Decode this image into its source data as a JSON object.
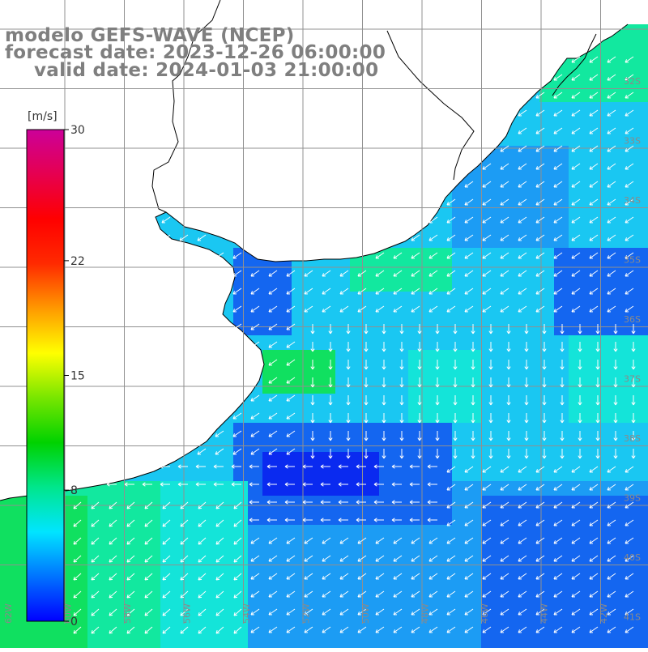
{
  "title": {
    "model": "modelo GEFS-WAVE (NCEP)",
    "forecast": "forecast date: 2023-12-26 06:00:00",
    "valid": "valid date: 2024-01-03 21:00:00"
  },
  "colorbar": {
    "unit": "[m/s]",
    "ticks": [
      {
        "value": 30,
        "label": "30"
      },
      {
        "value": 22,
        "label": "22"
      },
      {
        "value": 15,
        "label": "15"
      },
      {
        "value": 8,
        "label": "8"
      },
      {
        "value": 0,
        "label": "0"
      }
    ],
    "gradient_colors": [
      "#0000ff",
      "#0073ff",
      "#00e5ff",
      "#00e68c",
      "#00d200",
      "#78e600",
      "#ffff00",
      "#ff9900",
      "#ff2a00",
      "#ff0000",
      "#e60050",
      "#cc0099"
    ]
  },
  "map": {
    "land_color": "#ffffff",
    "grid_color": "#909090",
    "coast_color": "#000000",
    "vector_color": "#ffffff",
    "field_colors": {
      "deep_blue": "#0a2af0",
      "blue": "#1466f0",
      "light_blue": "#1c9cf4",
      "cyan": "#1ac7f2",
      "aqua": "#14e4d9",
      "mint": "#12e89f",
      "green": "#10e060"
    },
    "lat_labels": [
      "32S",
      "33S",
      "34S",
      "35S",
      "36S",
      "37S",
      "38S",
      "39S",
      "40S",
      "41S"
    ],
    "lon_labels": [
      "62W",
      "60W",
      "58W",
      "56W",
      "54W",
      "52W",
      "50W",
      "48W",
      "46W",
      "44W",
      "42W"
    ]
  }
}
